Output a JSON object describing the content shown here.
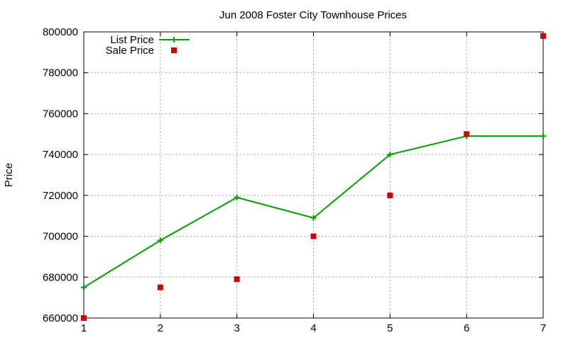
{
  "chart_data": {
    "type": "line",
    "title": "Jun 2008 Foster City Townhouse Prices",
    "xlabel": "",
    "ylabel": "Price",
    "x": [
      1,
      2,
      3,
      4,
      5,
      6,
      7
    ],
    "xlim": [
      1,
      7
    ],
    "ylim": [
      660000,
      800000
    ],
    "xticks": [
      1,
      2,
      3,
      4,
      5,
      6,
      7
    ],
    "yticks": [
      660000,
      680000,
      700000,
      720000,
      740000,
      760000,
      780000,
      800000
    ],
    "grid": true,
    "legend_position": "top-left",
    "series": [
      {
        "name": "List Price",
        "style": "line+plus",
        "color": "#00a000",
        "values": [
          675000,
          698000,
          719000,
          709000,
          740000,
          749000,
          749000
        ]
      },
      {
        "name": "Sale Price",
        "style": "square-points",
        "color": "#cc0000",
        "values": [
          660000,
          675000,
          679000,
          700000,
          720000,
          750000,
          798000
        ]
      }
    ]
  }
}
